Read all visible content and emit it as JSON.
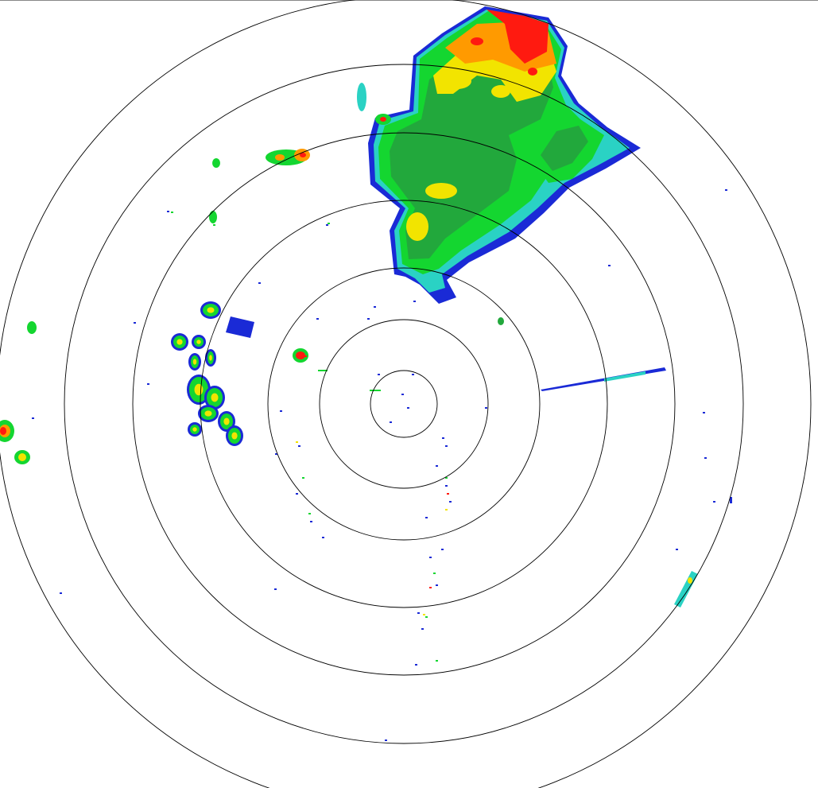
{
  "radar": {
    "type": "PPI reflectivity",
    "range_ring_count": 7,
    "palette": {
      "blue": "#1a2ad6",
      "cyan": "#2ad2c4",
      "light_green": "#14d630",
      "green": "#22a83c",
      "yellow": "#f2e400",
      "orange": "#ff9a00",
      "red": "#ff1a10"
    },
    "ring_color": "#000000"
  }
}
